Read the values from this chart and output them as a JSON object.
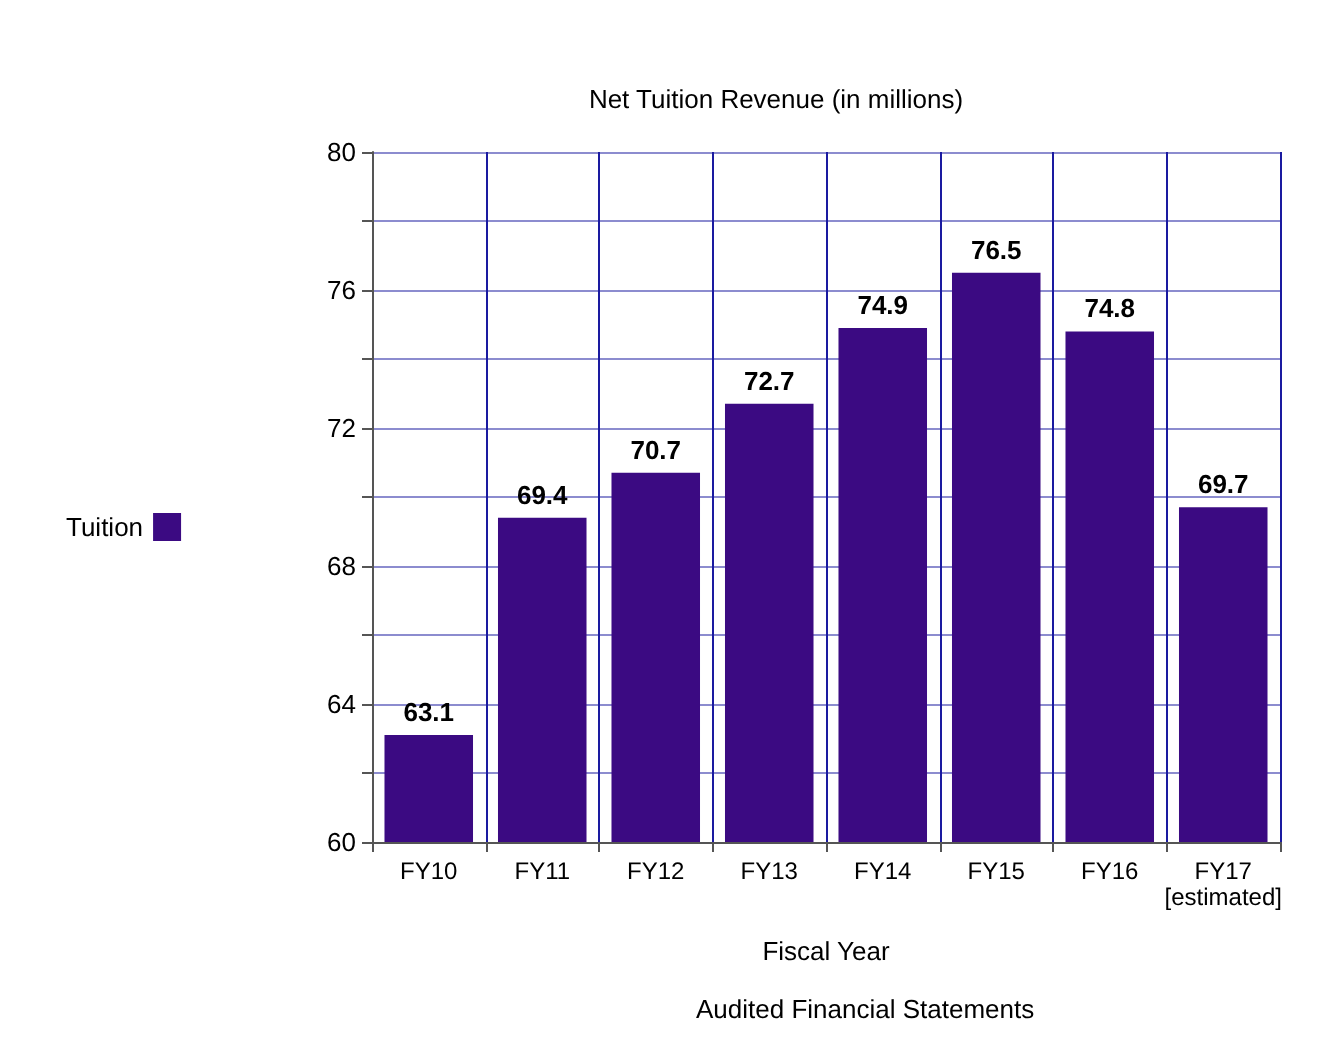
{
  "chart_data": {
    "type": "bar",
    "title": "Net Tuition Revenue (in millions)",
    "xlabel": "Fiscal Year",
    "annotations": [
      "Audited Financial Statements"
    ],
    "categories": [
      "FY10",
      "FY11",
      "FY12",
      "FY13",
      "FY14",
      "FY15",
      "FY16",
      "FY17\n[estimated]"
    ],
    "series": [
      {
        "name": "Tuition",
        "color": "#3b0a82",
        "values": [
          63.1,
          69.4,
          70.7,
          72.7,
          74.9,
          76.5,
          74.8,
          69.7
        ]
      }
    ],
    "data_labels": true,
    "ylim": [
      60,
      80
    ],
    "yticks": [
      60,
      {
        "value": 62,
        "label": null
      },
      64,
      {
        "value": 66,
        "label": null
      },
      68,
      {
        "value": 70,
        "label": null
      },
      72,
      {
        "value": 74,
        "label": null
      },
      76,
      {
        "value": 78,
        "label": null
      },
      80
    ],
    "grid": true,
    "legend": "left"
  }
}
